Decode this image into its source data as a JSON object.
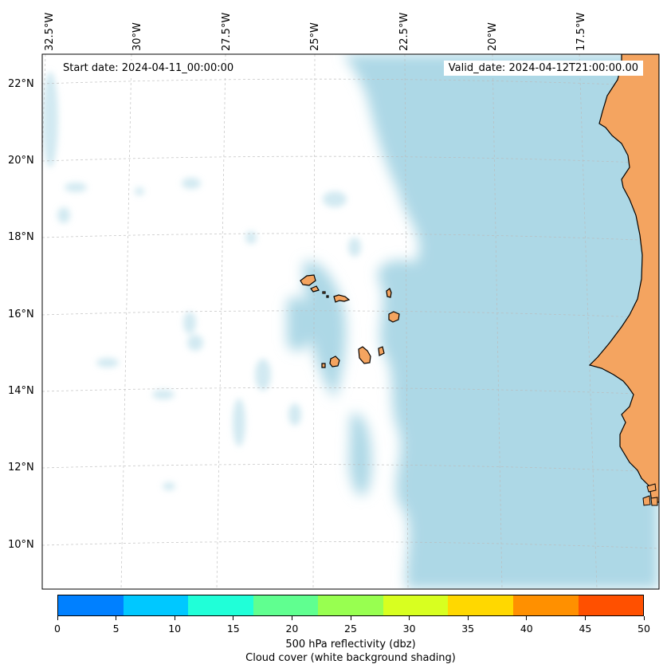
{
  "map": {
    "start_date": "Start date: 2024-04-11_00:00:00",
    "valid_date": "Valid_date: 2024-04-12T21:00:00.00",
    "longitude_labels": [
      "32.5°W",
      "30°W",
      "27.5°W",
      "25°W",
      "22.5°W",
      "20°W",
      "17.5°W"
    ],
    "latitude_labels": [
      "22°N",
      "20°N",
      "18°N",
      "16°N",
      "14°N",
      "12°N",
      "10°N"
    ],
    "land_color": "#f4a460",
    "cloud_color": "#add8e6",
    "ocean_color": "#ffffff",
    "grid": true,
    "visible_features": [
      "Cape Verde islands",
      "West African coastline"
    ]
  },
  "colorbar": {
    "ticks": [
      "0",
      "5",
      "10",
      "15",
      "20",
      "25",
      "30",
      "35",
      "40",
      "45",
      "50"
    ],
    "colors": [
      "#0080ff",
      "#00c8ff",
      "#20ffd8",
      "#60ff90",
      "#98ff50",
      "#d8ff20",
      "#ffd800",
      "#ff9000",
      "#ff5000"
    ],
    "label_line1": "500 hPa reflectivity (dbz)",
    "label_line2": "Cloud cover (white background shading)"
  }
}
